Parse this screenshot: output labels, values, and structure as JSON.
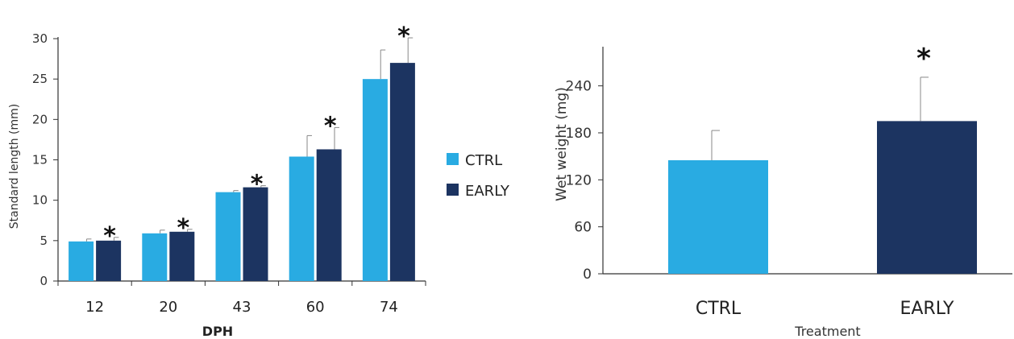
{
  "chart_data": [
    {
      "type": "bar",
      "xlabel": "DPH",
      "ylabel": "Standard length (mm)",
      "categories": [
        "12",
        "20",
        "43",
        "60",
        "74"
      ],
      "ylim": [
        0,
        30
      ],
      "yticks": [
        "0",
        "5",
        "10",
        "15",
        "20",
        "25",
        "30"
      ],
      "series": [
        {
          "name": "CTRL",
          "color": "#29abe2",
          "values": [
            4.9,
            5.9,
            11.0,
            15.4,
            25.0
          ],
          "errors": [
            0.3,
            0.4,
            0.2,
            2.6,
            3.6
          ]
        },
        {
          "name": "EARLY",
          "color": "#1c3461",
          "values": [
            5.0,
            6.1,
            11.6,
            16.3,
            27.0
          ],
          "errors": [
            0.4,
            0.3,
            0.2,
            2.7,
            3.1
          ]
        }
      ],
      "significance": [
        "*",
        "*",
        "*",
        "*",
        "*"
      ],
      "legend": {
        "placement": "right",
        "items": [
          "CTRL",
          "EARLY"
        ]
      }
    },
    {
      "type": "bar",
      "xlabel": "Treatment",
      "ylabel": "Wet weight (mg)",
      "categories": [
        "CTRL",
        "EARLY"
      ],
      "ylim": [
        0,
        290
      ],
      "yticks": [
        "0",
        "60",
        "120",
        "180",
        "240"
      ],
      "values": [
        145,
        195
      ],
      "errors": [
        38,
        56
      ],
      "colors": [
        "#29abe2",
        "#1c3461"
      ],
      "significance": [
        "",
        "*"
      ]
    }
  ]
}
